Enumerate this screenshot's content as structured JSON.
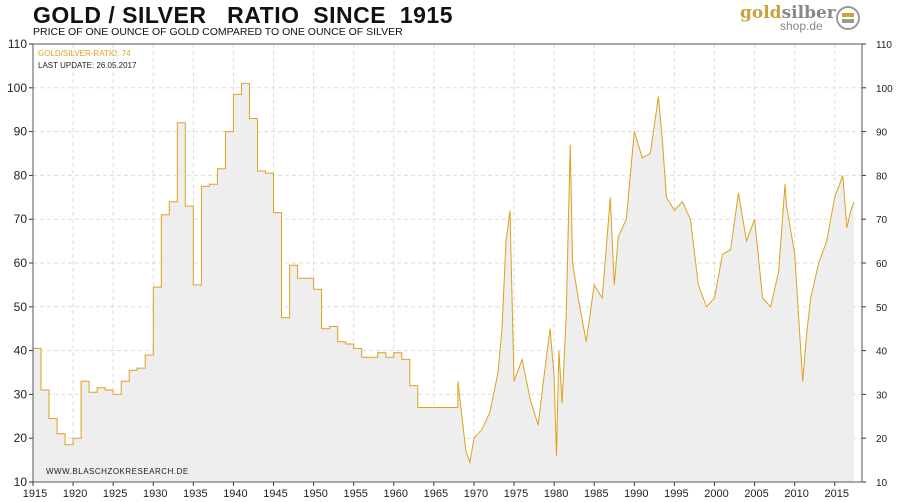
{
  "chart_data": {
    "type": "area",
    "title": "GOLD / SILVER   RATIO  SINCE  1915",
    "subtitle": "PRICE OF ONE OUNCE OF GOLD COMPARED TO ONE OUNCE OF SILVER",
    "legend": "GOLD/SILVER-RATIO: 74",
    "last_update": "LAST UPDATE: 26.05.2017",
    "source": "WWW.BLASCHZOKRESEARCH.DE",
    "xlim": [
      1915,
      2018.4
    ],
    "ylim": [
      10,
      110
    ],
    "xticks": [
      1915,
      1920,
      1925,
      1930,
      1935,
      1940,
      1945,
      1950,
      1955,
      1960,
      1965,
      1970,
      1975,
      1980,
      1985,
      1990,
      1995,
      2000,
      2005,
      2010,
      2015
    ],
    "yticks": [
      10,
      20,
      30,
      40,
      50,
      60,
      70,
      80,
      90,
      100,
      110
    ],
    "series": [
      {
        "name": "GOLD/SILVER-RATIO",
        "color": "#e0a020",
        "step_until": 1968,
        "x": [
          1915,
          1916,
          1917,
          1918,
          1919,
          1920,
          1921,
          1922,
          1923,
          1924,
          1925,
          1926,
          1927,
          1928,
          1929,
          1930,
          1931,
          1932,
          1933,
          1934,
          1935,
          1936,
          1937,
          1938,
          1939,
          1940,
          1941,
          1942,
          1943,
          1944,
          1945,
          1946,
          1947,
          1948,
          1949,
          1950,
          1951,
          1952,
          1953,
          1954,
          1955,
          1956,
          1957,
          1958,
          1959,
          1960,
          1961,
          1962,
          1963,
          1964,
          1965,
          1966,
          1967,
          1968,
          1968.5,
          1969,
          1969.5,
          1970,
          1971,
          1972,
          1973,
          1973.5,
          1974,
          1974.5,
          1975,
          1976,
          1977,
          1978,
          1979,
          1979.5,
          1980,
          1980.3,
          1980.6,
          1981,
          1981.5,
          1982,
          1982.3,
          1983,
          1984,
          1985,
          1986,
          1987,
          1987.5,
          1988,
          1989,
          1990,
          1991,
          1992,
          1993,
          1993.5,
          1994,
          1995,
          1996,
          1997,
          1998,
          1999,
          2000,
          2001,
          2002,
          2003,
          2004,
          2005,
          2006,
          2007,
          2008,
          2008.8,
          2009,
          2010,
          2011,
          2011.5,
          2012,
          2013,
          2014,
          2015,
          2016,
          2016.5,
          2017,
          2017.4
        ],
        "y": [
          40.5,
          31,
          24.5,
          21,
          18.5,
          20,
          33,
          30.5,
          31.5,
          31,
          30,
          33,
          35.5,
          36,
          39,
          54.5,
          71,
          74,
          92,
          73,
          55,
          77.5,
          78,
          81.5,
          90,
          98.5,
          101,
          93,
          81,
          80.5,
          71.5,
          47.5,
          59.5,
          56.5,
          56.5,
          54,
          45,
          45.5,
          42,
          41.5,
          40.5,
          38.5,
          38.5,
          39.5,
          38.5,
          39.5,
          38,
          32,
          27,
          27,
          27,
          27,
          27,
          33,
          25,
          17,
          14.5,
          20,
          22,
          26,
          35,
          45,
          65,
          72,
          33,
          38,
          29,
          23,
          38,
          45,
          34,
          16,
          40,
          28,
          48,
          87,
          60,
          52,
          42,
          55,
          52,
          75,
          55,
          66,
          70,
          90,
          84,
          85,
          98,
          88,
          75,
          72,
          74,
          70,
          55,
          50,
          52,
          62,
          63,
          76,
          65,
          70,
          52,
          50,
          58,
          78,
          73,
          62,
          33,
          44,
          52,
          60,
          65,
          75,
          80,
          68,
          72,
          74
        ]
      }
    ]
  }
}
